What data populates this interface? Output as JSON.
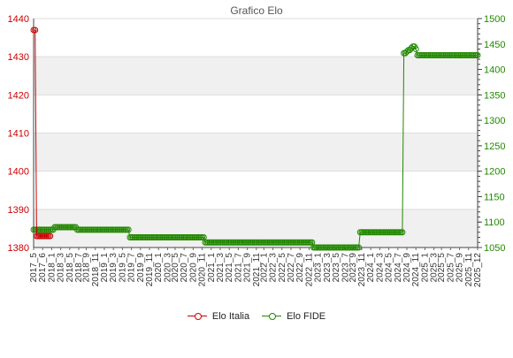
{
  "chart_data": {
    "type": "line",
    "title": "Grafico Elo",
    "xlabel": "",
    "ylabel_left": "",
    "ylabel_right": "",
    "y_left": {
      "range": [
        1380,
        1440
      ],
      "ticks": [
        1380,
        1390,
        1400,
        1410,
        1420,
        1430,
        1440
      ],
      "color": "#cc0000"
    },
    "y_right": {
      "range": [
        1050,
        1500
      ],
      "ticks": [
        1050,
        1100,
        1150,
        1200,
        1250,
        1300,
        1350,
        1400,
        1450,
        1500
      ],
      "color": "#228800"
    },
    "grid": true,
    "legend_position": "bottom",
    "x_first": "2017_5",
    "x_last": "2025_12",
    "series": [
      {
        "name": "Elo Italia",
        "axis": "left",
        "color": "#cc0000",
        "values": [
          1437,
          1437,
          1383,
          1383,
          1383,
          1383,
          1383,
          1383,
          1383,
          1383,
          1383,
          1383
        ]
      },
      {
        "name": "Elo FIDE",
        "axis": "right",
        "color": "#228800",
        "values": [
          1085,
          1085,
          1085,
          1085,
          1085,
          1085,
          1085,
          1085,
          1085,
          1085,
          1085,
          1085,
          1085,
          1085,
          1090,
          1090,
          1090,
          1090,
          1090,
          1090,
          1090,
          1090,
          1090,
          1090,
          1090,
          1090,
          1090,
          1090,
          1090,
          1085,
          1085,
          1085,
          1085,
          1085,
          1085,
          1085,
          1085,
          1085,
          1085,
          1085,
          1085,
          1085,
          1085,
          1085,
          1085,
          1085,
          1085,
          1085,
          1085,
          1085,
          1085,
          1085,
          1085,
          1085,
          1085,
          1085,
          1085,
          1085,
          1085,
          1085,
          1085,
          1085,
          1085,
          1085,
          1070,
          1070,
          1070,
          1070,
          1070,
          1070,
          1070,
          1070,
          1070,
          1070,
          1070,
          1070,
          1070,
          1070,
          1070,
          1070,
          1070,
          1070,
          1070,
          1070,
          1070,
          1070,
          1070,
          1070,
          1070,
          1070,
          1070,
          1070,
          1070,
          1070,
          1070,
          1070,
          1070,
          1070,
          1070,
          1070,
          1070,
          1070,
          1070,
          1070,
          1070,
          1070,
          1070,
          1070,
          1070,
          1070,
          1070,
          1070,
          1070,
          1070,
          1060,
          1060,
          1060,
          1060,
          1060,
          1060,
          1060,
          1060,
          1060,
          1060,
          1060,
          1060,
          1060,
          1060,
          1060,
          1060,
          1060,
          1060,
          1060,
          1060,
          1060,
          1060,
          1060,
          1060,
          1060,
          1060,
          1060,
          1060,
          1060,
          1060,
          1060,
          1060,
          1060,
          1060,
          1060,
          1060,
          1060,
          1060,
          1060,
          1060,
          1060,
          1060,
          1060,
          1060,
          1060,
          1060,
          1060,
          1060,
          1060,
          1060,
          1060,
          1060,
          1060,
          1060,
          1060,
          1060,
          1060,
          1060,
          1060,
          1060,
          1060,
          1060,
          1060,
          1060,
          1060,
          1060,
          1060,
          1060,
          1060,
          1060,
          1060,
          1060,
          1050,
          1050,
          1050,
          1050,
          1050,
          1050,
          1050,
          1050,
          1050,
          1050,
          1050,
          1050,
          1050,
          1050,
          1050,
          1050,
          1050,
          1050,
          1050,
          1050,
          1050,
          1050,
          1050,
          1050,
          1050,
          1050,
          1050,
          1050,
          1050,
          1050,
          1050,
          1080,
          1080,
          1080,
          1080,
          1080,
          1080,
          1080,
          1080,
          1080,
          1080,
          1080,
          1080,
          1080,
          1080,
          1080,
          1080,
          1080,
          1080,
          1080,
          1080,
          1080,
          1080,
          1080,
          1080,
          1080,
          1080,
          1080,
          1080,
          1080,
          1432,
          1432,
          1435,
          1438,
          1438,
          1442,
          1445,
          1445,
          1440,
          1428,
          1428,
          1428,
          1428,
          1428,
          1428,
          1428,
          1428,
          1428,
          1428,
          1428,
          1428,
          1428,
          1428,
          1428,
          1428,
          1428,
          1428,
          1428,
          1428,
          1428,
          1428,
          1428,
          1428,
          1428,
          1428,
          1428,
          1428,
          1428,
          1428,
          1428,
          1428,
          1428,
          1428,
          1428,
          1428,
          1428,
          1428,
          1428,
          1428,
          1428
        ]
      }
    ],
    "x_tick_labels": [
      "2017_5",
      "2017_6",
      "2018_1",
      "2018_3",
      "2018_5",
      "2018_7",
      "2018_9",
      "2018_11",
      "2019_1",
      "2019_3",
      "2019_5",
      "2019_7",
      "2019_9",
      "2019_11",
      "2020_1",
      "2020_3",
      "2020_5",
      "2020_7",
      "2020_9",
      "2020_11",
      "2021_1",
      "2021_3",
      "2021_5",
      "2021_7",
      "2021_9",
      "2021_11",
      "2022_1",
      "2022_3",
      "2022_5",
      "2022_7",
      "2022_9",
      "2022_11",
      "2023_1",
      "2023_3",
      "2023_5",
      "2023_7",
      "2023_9",
      "2023_11",
      "2024_1",
      "2024_3",
      "2024_5",
      "2024_7",
      "2024_9",
      "2024_11",
      "2025_1",
      "2025_3",
      "2025_5",
      "2025_7",
      "2025_9",
      "2025_11",
      "2025_12"
    ]
  }
}
